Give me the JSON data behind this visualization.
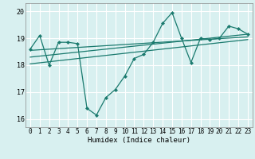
{
  "title": "",
  "xlabel": "Humidex (Indice chaleur)",
  "ylabel": "",
  "bg_color": "#d8f0f0",
  "line_color": "#1a7a6e",
  "grid_color": "#ffffff",
  "xlim": [
    -0.5,
    23.5
  ],
  "ylim": [
    15.7,
    20.3
  ],
  "yticks": [
    16,
    17,
    18,
    19,
    20
  ],
  "xticks": [
    0,
    1,
    2,
    3,
    4,
    5,
    6,
    7,
    8,
    9,
    10,
    11,
    12,
    13,
    14,
    15,
    16,
    17,
    18,
    19,
    20,
    21,
    22,
    23
  ],
  "main_x": [
    0,
    1,
    2,
    3,
    4,
    5,
    6,
    7,
    8,
    9,
    10,
    11,
    12,
    13,
    14,
    15,
    16,
    17,
    18,
    19,
    20,
    21,
    22,
    23
  ],
  "main_y": [
    18.6,
    19.1,
    18.0,
    18.85,
    18.85,
    18.8,
    16.4,
    16.15,
    16.8,
    17.1,
    17.6,
    18.25,
    18.4,
    18.85,
    19.55,
    19.95,
    19.0,
    18.1,
    19.0,
    18.95,
    19.0,
    19.45,
    19.35,
    19.15
  ],
  "trend1_x": [
    0,
    23
  ],
  "trend1_y": [
    18.3,
    19.15
  ],
  "trend2_x": [
    0,
    23
  ],
  "trend2_y": [
    18.55,
    19.05
  ],
  "trend3_x": [
    0,
    23
  ],
  "trend3_y": [
    18.05,
    18.95
  ]
}
